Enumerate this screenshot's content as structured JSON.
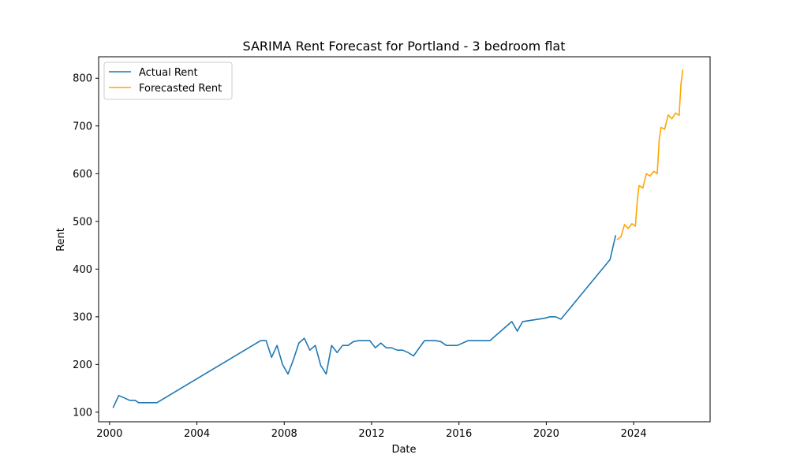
{
  "chart_data": {
    "type": "line",
    "title": "SARIMA Rent Forecast for Portland - 3 bedroom flat",
    "xlabel": "Date",
    "ylabel": "Rent",
    "xlim": [
      1999.5,
      2027.5
    ],
    "ylim": [
      80,
      845
    ],
    "x_ticks": [
      2000,
      2004,
      2008,
      2012,
      2016,
      2020,
      2024
    ],
    "y_ticks": [
      100,
      200,
      300,
      400,
      500,
      600,
      700,
      800
    ],
    "grid": false,
    "legend_position": "top-left",
    "series": [
      {
        "name": "Actual Rent",
        "color": "#1f77b4",
        "x": [
          2000.17,
          2000.42,
          2000.67,
          2000.92,
          2001.17,
          2001.33,
          2001.67,
          2002.17,
          2006.92,
          2007.17,
          2007.42,
          2007.67,
          2007.92,
          2008.17,
          2008.42,
          2008.67,
          2008.92,
          2009.17,
          2009.42,
          2009.67,
          2009.92,
          2010.17,
          2010.42,
          2010.67,
          2010.92,
          2011.17,
          2011.42,
          2011.67,
          2011.92,
          2012.17,
          2012.42,
          2012.67,
          2012.92,
          2013.17,
          2013.42,
          2013.67,
          2013.92,
          2014.42,
          2014.92,
          2015.17,
          2015.42,
          2015.92,
          2016.42,
          2016.92,
          2017.42,
          2018.42,
          2018.67,
          2018.92,
          2019.92,
          2020.17,
          2020.42,
          2020.67,
          2022.92,
          2023.17
        ],
        "y": [
          110,
          135,
          130,
          125,
          125,
          120,
          120,
          120,
          250,
          250,
          215,
          240,
          200,
          180,
          210,
          245,
          255,
          230,
          240,
          198,
          180,
          240,
          225,
          240,
          240,
          248,
          250,
          250,
          250,
          235,
          245,
          235,
          235,
          230,
          230,
          225,
          218,
          250,
          250,
          248,
          240,
          240,
          250,
          250,
          250,
          290,
          270,
          290,
          297,
          300,
          300,
          295,
          420,
          470
        ]
      },
      {
        "name": "Forecasted Rent",
        "color": "#ffa500",
        "x": [
          2023.25,
          2023.42,
          2023.58,
          2023.75,
          2023.92,
          2024.08,
          2024.17,
          2024.25,
          2024.42,
          2024.58,
          2024.75,
          2024.92,
          2025.08,
          2025.17,
          2025.25,
          2025.42,
          2025.58,
          2025.75,
          2025.92,
          2026.08,
          2026.17,
          2026.25
        ],
        "y": [
          462,
          468,
          493,
          485,
          495,
          490,
          545,
          575,
          570,
          600,
          595,
          605,
          600,
          670,
          697,
          693,
          723,
          715,
          727,
          722,
          790,
          817
        ]
      }
    ]
  }
}
